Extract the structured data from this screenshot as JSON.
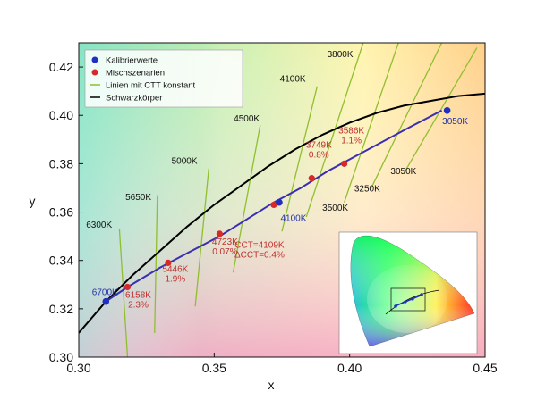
{
  "chart_data": {
    "type": "scatter",
    "title": "",
    "xlabel": "x",
    "ylabel": "y",
    "xlim": [
      0.3,
      0.45
    ],
    "ylim": [
      0.3,
      0.43
    ],
    "xticks": [
      "0.30",
      "0.35",
      "0.40",
      "0.45"
    ],
    "yticks": [
      "0.30",
      "0.32",
      "0.34",
      "0.36",
      "0.38",
      "0.40",
      "0.42"
    ],
    "xtick_values": [
      0.3,
      0.35,
      0.4,
      0.45
    ],
    "ytick_values": [
      0.3,
      0.32,
      0.34,
      0.36,
      0.38,
      0.4,
      0.42
    ],
    "legend": [
      {
        "label": "Kalibrierwerte",
        "kind": "marker",
        "color": "#1f2fbf"
      },
      {
        "label": "Mischszenarien",
        "kind": "marker",
        "color": "#d62a2a"
      },
      {
        "label": "Linien mit CTT konstant",
        "kind": "line",
        "color": "#8fbf2f"
      },
      {
        "label": "Schwarzkörper",
        "kind": "line",
        "color": "#000000"
      }
    ],
    "blackbody": {
      "name": "Schwarzkörper",
      "color": "#000000",
      "x": [
        0.3,
        0.31,
        0.32,
        0.33,
        0.34,
        0.35,
        0.36,
        0.37,
        0.38,
        0.39,
        0.4,
        0.41,
        0.42,
        0.43,
        0.44,
        0.45
      ],
      "y": [
        0.31,
        0.323,
        0.334,
        0.344,
        0.354,
        0.363,
        0.371,
        0.379,
        0.386,
        0.392,
        0.397,
        0.401,
        0.404,
        0.406,
        0.408,
        0.409
      ]
    },
    "calibration_line": {
      "name": "Kalibrierwerte",
      "color": "#3a2fb0",
      "x": [
        0.31,
        0.318,
        0.33,
        0.34,
        0.352,
        0.362,
        0.372,
        0.382,
        0.392,
        0.402,
        0.412,
        0.422,
        0.434
      ],
      "y": [
        0.323,
        0.329,
        0.337,
        0.343,
        0.35,
        0.357,
        0.364,
        0.37,
        0.377,
        0.383,
        0.389,
        0.395,
        0.402
      ]
    },
    "calibration_points": [
      {
        "x": 0.31,
        "y": 0.323,
        "label": "6700K"
      },
      {
        "x": 0.374,
        "y": 0.364,
        "label": "4100K"
      },
      {
        "x": 0.436,
        "y": 0.402,
        "label": "3050K"
      }
    ],
    "mix_points": [
      {
        "x": 0.318,
        "y": 0.329,
        "label": [
          "6158K",
          "2.3%"
        ]
      },
      {
        "x": 0.333,
        "y": 0.339,
        "label": [
          "5446K",
          "1.9%"
        ]
      },
      {
        "x": 0.352,
        "y": 0.351,
        "label": [
          "4723K",
          "0.07%"
        ]
      },
      {
        "x": 0.372,
        "y": 0.363,
        "label": [
          "CCT=4109K",
          "ΔCCT=0.4%"
        ]
      },
      {
        "x": 0.386,
        "y": 0.374,
        "label": [
          "3749K",
          "0.8%"
        ]
      },
      {
        "x": 0.398,
        "y": 0.38,
        "label": [
          "3586K",
          "1.1%"
        ]
      }
    ],
    "isotherms": [
      {
        "label": "6300K",
        "x1": 0.318,
        "y1": 0.3,
        "x2": 0.315,
        "y2": 0.353
      },
      {
        "label": "5650K",
        "x1": 0.328,
        "y1": 0.31,
        "x2": 0.329,
        "y2": 0.367
      },
      {
        "label": "5000K",
        "x1": 0.343,
        "y1": 0.321,
        "x2": 0.348,
        "y2": 0.378
      },
      {
        "label": "4500K",
        "x1": 0.357,
        "y1": 0.335,
        "x2": 0.367,
        "y2": 0.396
      },
      {
        "label": "4100K",
        "x1": 0.375,
        "y1": 0.352,
        "x2": 0.388,
        "y2": 0.412
      },
      {
        "label": "3800K",
        "x1": 0.384,
        "y1": 0.358,
        "x2": 0.405,
        "y2": 0.43
      },
      {
        "label": "3500K",
        "x1": 0.398,
        "y1": 0.364,
        "x2": 0.418,
        "y2": 0.43
      },
      {
        "label": "3250K",
        "x1": 0.408,
        "y1": 0.37,
        "x2": 0.434,
        "y2": 0.43
      },
      {
        "label": "3050K",
        "x1": 0.42,
        "y1": 0.376,
        "x2": 0.447,
        "y2": 0.428
      }
    ],
    "isotherm_labels": [
      {
        "text": "6300K",
        "x": 0.3075,
        "y": 0.3535
      },
      {
        "text": "5650K",
        "x": 0.322,
        "y": 0.365
      },
      {
        "text": "5000K",
        "x": 0.339,
        "y": 0.38
      },
      {
        "text": "4500K",
        "x": 0.362,
        "y": 0.3975
      },
      {
        "text": "4100K",
        "x": 0.379,
        "y": 0.414
      },
      {
        "text": "3800K",
        "x": 0.3965,
        "y": 0.424
      },
      {
        "text": "3500K",
        "x": 0.3947,
        "y": 0.3605
      },
      {
        "text": "3250K",
        "x": 0.4065,
        "y": 0.3685
      },
      {
        "text": "3050K",
        "x": 0.4199,
        "y": 0.3757
      }
    ],
    "inset": {
      "description": "CIE 1931 chromaticity diagram with locus, zoom rectangle",
      "placement": "bottom-right"
    }
  }
}
